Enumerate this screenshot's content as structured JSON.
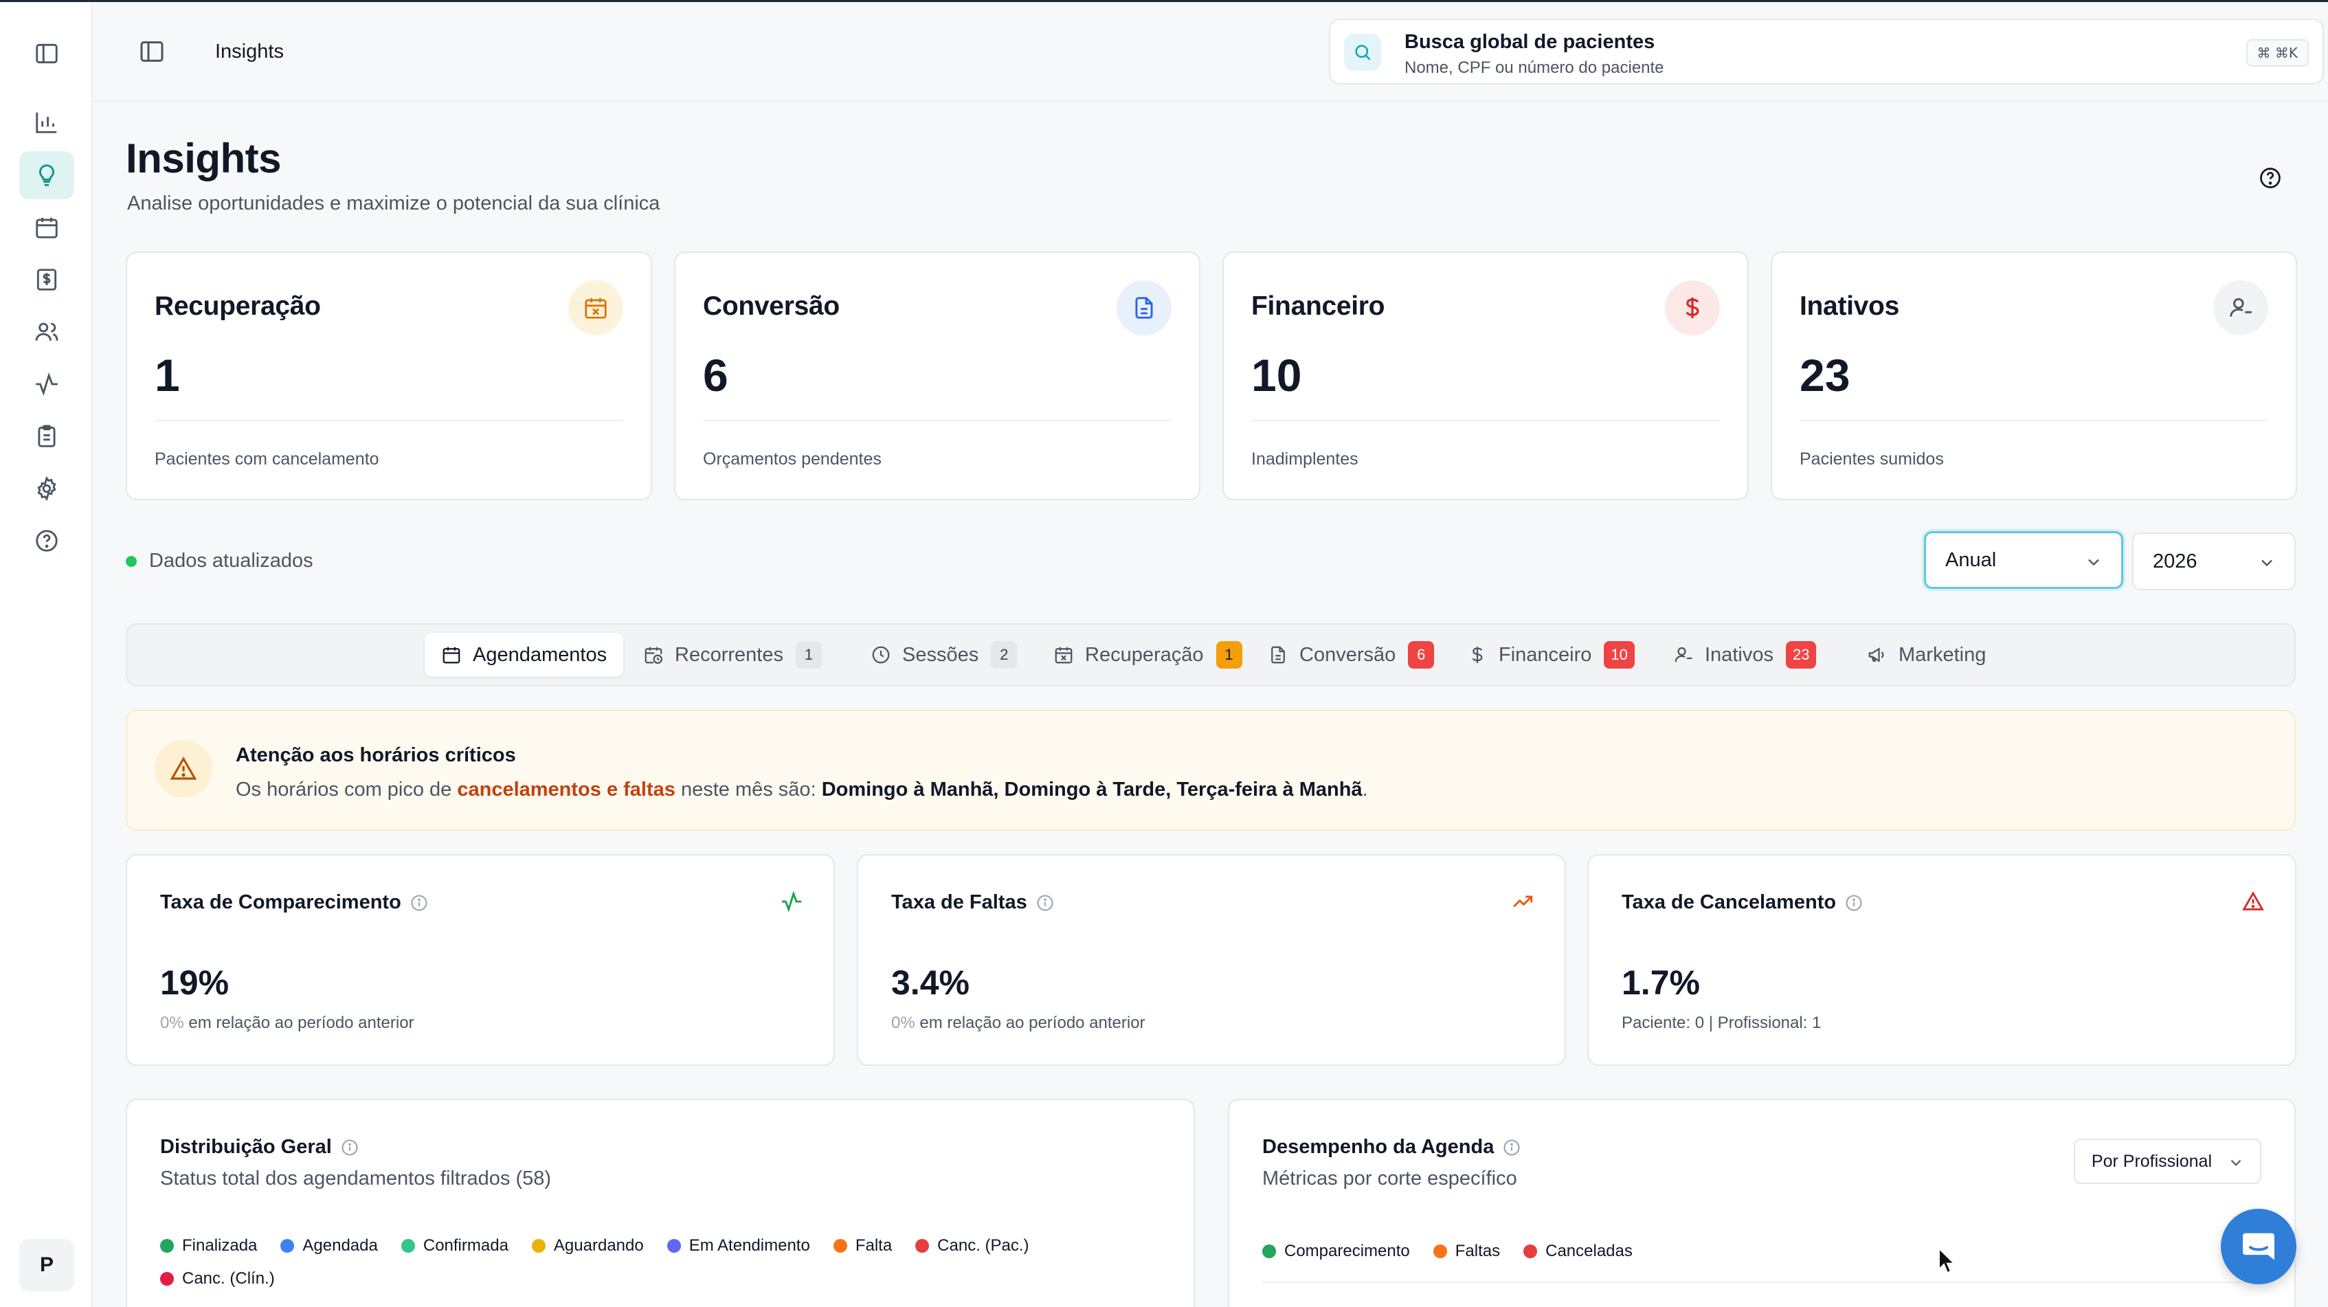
{
  "sidebar": {
    "items": [
      {
        "name": "sidebar-toggle-icon"
      },
      {
        "name": "chart-bar-icon"
      },
      {
        "name": "lightbulb-icon",
        "active": true
      },
      {
        "name": "calendar-icon"
      },
      {
        "name": "dollar-document-icon"
      },
      {
        "name": "users-icon"
      },
      {
        "name": "activity-icon"
      },
      {
        "name": "clipboard-icon"
      },
      {
        "name": "gear-icon"
      },
      {
        "name": "help-circle-icon"
      }
    ],
    "avatar_initial": "P"
  },
  "header": {
    "breadcrumb": "Insights",
    "search": {
      "title": "Busca global de pacientes",
      "subtitle": "Nome, CPF ou número do paciente",
      "shortcut": "⌘ ⌘K"
    }
  },
  "page": {
    "title": "Insights",
    "subtitle": "Analise oportunidades e maximize o potencial da sua clínica"
  },
  "kpis": [
    {
      "title": "Recuperação",
      "value": "1",
      "desc": "Pacientes com cancelamento",
      "icon": "calendar-x-icon",
      "color": "#d97706",
      "bg": "#fdf3dc"
    },
    {
      "title": "Conversão",
      "value": "6",
      "desc": "Orçamentos pendentes",
      "icon": "document-icon",
      "color": "#2563eb",
      "bg": "#e8f0fc"
    },
    {
      "title": "Financeiro",
      "value": "10",
      "desc": "Inadimplentes",
      "icon": "dollar-icon",
      "color": "#dc2626",
      "bg": "#fde8e8"
    },
    {
      "title": "Inativos",
      "value": "23",
      "desc": "Pacientes sumidos",
      "icon": "user-minus-icon",
      "color": "#4b5563",
      "bg": "#f1f3f5"
    }
  ],
  "filters": {
    "status": "Dados atualizados",
    "period": "Anual",
    "year": "2026"
  },
  "tabs": [
    {
      "label": "Agendamentos",
      "icon": "calendar-icon",
      "active": true
    },
    {
      "label": "Recorrentes",
      "icon": "calendar-clock-icon",
      "badge": "1",
      "badge_style": "gray"
    },
    {
      "label": "Sessões",
      "icon": "clock-icon",
      "badge": "2",
      "badge_style": "gray"
    },
    {
      "label": "Recuperação",
      "icon": "calendar-x-icon",
      "badge": "1",
      "badge_style": "amber"
    },
    {
      "label": "Conversão",
      "icon": "document-icon",
      "badge": "6",
      "badge_style": "red"
    },
    {
      "label": "Financeiro",
      "icon": "dollar-icon",
      "badge": "10",
      "badge_style": "red"
    },
    {
      "label": "Inativos",
      "icon": "user-minus-icon",
      "badge": "23",
      "badge_style": "red"
    },
    {
      "label": "Marketing",
      "icon": "megaphone-icon"
    }
  ],
  "alert": {
    "title": "Atenção aos horários críticos",
    "text_pre": "Os horários com pico de ",
    "text_highlight": "cancelamentos e faltas",
    "text_mid": " neste mês são: ",
    "text_strong": "Domingo à Manhã, Domingo à Tarde, Terça-feira à Manhã",
    "text_end": "."
  },
  "metrics": [
    {
      "title": "Taxa de Comparecimento",
      "value": "19%",
      "foot_muted": "0%",
      "foot": " em relação ao período anterior",
      "icon": "activity-icon",
      "color": "#16a34a"
    },
    {
      "title": "Taxa de Faltas",
      "value": "3.4%",
      "foot_muted": "0%",
      "foot": " em relação ao período anterior",
      "icon": "trending-up-icon",
      "color": "#ea580c"
    },
    {
      "title": "Taxa de Cancelamento",
      "value": "1.7%",
      "foot_muted": "",
      "foot": "Paciente: 0 | Profissional: 1",
      "icon": "warning-triangle-icon",
      "color": "#dc2626"
    }
  ],
  "distribution": {
    "title": "Distribuição Geral",
    "subtitle": "Status total dos agendamentos filtrados (58)",
    "legend": [
      {
        "label": "Finalizada",
        "color": "#22a55e"
      },
      {
        "label": "Agendada",
        "color": "#3b82f6"
      },
      {
        "label": "Confirmada",
        "color": "#34c58a"
      },
      {
        "label": "Aguardando",
        "color": "#eab308"
      },
      {
        "label": "Em Atendimento",
        "color": "#6366f1"
      },
      {
        "label": "Falta",
        "color": "#f97316"
      },
      {
        "label": "Canc. (Pac.)",
        "color": "#e53e3e"
      },
      {
        "label": "Canc. (Clín.)",
        "color": "#e11d48"
      }
    ]
  },
  "performance": {
    "title": "Desempenho da Agenda",
    "subtitle": "Métricas por corte específico",
    "select": "Por Profissional",
    "legend": [
      {
        "label": "Comparecimento",
        "color": "#22a55e"
      },
      {
        "label": "Faltas",
        "color": "#f97316"
      },
      {
        "label": "Canceladas",
        "color": "#e53e3e"
      }
    ]
  }
}
